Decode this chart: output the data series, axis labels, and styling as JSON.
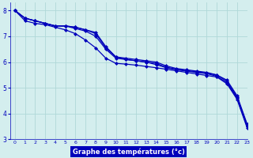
{
  "xlabel": "Graphe des températures (°c)",
  "bg_color": "#d4eeee",
  "line_color": "#0000bb",
  "grid_color": "#b0d8d8",
  "xlim": [
    -0.5,
    23
  ],
  "ylim": [
    3.0,
    8.3
  ],
  "yticks": [
    3,
    4,
    5,
    6,
    7,
    8
  ],
  "xticks": [
    0,
    1,
    2,
    3,
    4,
    5,
    6,
    7,
    8,
    9,
    10,
    11,
    12,
    13,
    14,
    15,
    16,
    17,
    18,
    19,
    20,
    21,
    22,
    23
  ],
  "series": [
    [
      8.0,
      7.7,
      7.6,
      7.5,
      7.4,
      7.4,
      7.35,
      7.25,
      7.15,
      6.6,
      6.2,
      6.15,
      6.1,
      6.05,
      6.0,
      5.85,
      5.75,
      5.7,
      5.65,
      5.6,
      5.5,
      5.3,
      4.7,
      3.6
    ],
    [
      8.0,
      7.7,
      7.6,
      7.5,
      7.4,
      7.4,
      7.35,
      7.25,
      7.1,
      6.55,
      6.2,
      6.1,
      6.05,
      6.0,
      5.95,
      5.8,
      5.72,
      5.67,
      5.62,
      5.57,
      5.5,
      5.25,
      4.65,
      3.55
    ],
    [
      8.0,
      7.7,
      7.6,
      7.5,
      7.4,
      7.4,
      7.3,
      7.2,
      7.0,
      6.5,
      6.15,
      6.1,
      6.05,
      6.0,
      5.9,
      5.78,
      5.7,
      5.65,
      5.6,
      5.55,
      5.45,
      5.2,
      4.6,
      3.5
    ],
    [
      8.0,
      7.6,
      7.5,
      7.45,
      7.35,
      7.25,
      7.1,
      6.85,
      6.55,
      6.15,
      5.95,
      5.92,
      5.88,
      5.83,
      5.78,
      5.72,
      5.66,
      5.6,
      5.54,
      5.48,
      5.42,
      5.16,
      4.56,
      3.45
    ]
  ]
}
